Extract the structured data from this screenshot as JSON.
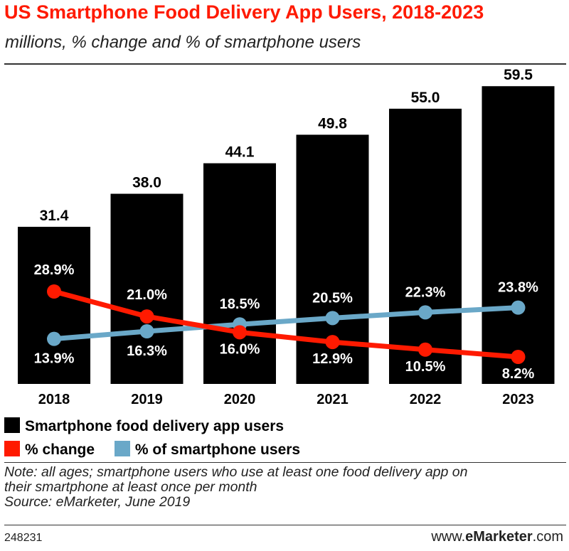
{
  "header": {
    "title": "US Smartphone Food Delivery App Users, 2018-2023",
    "subtitle": "millions, % change and % of smartphone users"
  },
  "chart_data": {
    "type": "bar",
    "categories": [
      "2018",
      "2019",
      "2020",
      "2021",
      "2022",
      "2023"
    ],
    "bar_series": {
      "name": "Smartphone food delivery app users",
      "values": [
        31.4,
        38.0,
        44.1,
        49.8,
        55.0,
        59.5
      ],
      "labels": [
        "31.4",
        "38.0",
        "44.1",
        "49.8",
        "55.0",
        "59.5"
      ],
      "color": "#000000"
    },
    "line_series": [
      {
        "name": "% change",
        "values": [
          28.9,
          21.0,
          16.0,
          12.9,
          10.5,
          8.2
        ],
        "labels": [
          "28.9%",
          "21.0%",
          "16.0%",
          "12.9%",
          "10.5%",
          "8.2%"
        ],
        "color": "#ff1a00"
      },
      {
        "name": "% of smartphone users",
        "values": [
          13.9,
          16.3,
          18.5,
          20.5,
          22.3,
          23.8
        ],
        "labels": [
          "13.9%",
          "16.3%",
          "18.5%",
          "20.5%",
          "22.3%",
          "23.8%"
        ],
        "color": "#6aa8c8"
      }
    ],
    "bar_ylim": [
      0,
      65
    ],
    "line_ylim": [
      0,
      40
    ]
  },
  "legend": {
    "bars": "Smartphone food delivery app users",
    "change": "% change",
    "share": "% of smartphone users"
  },
  "note": {
    "line1": "Note: all ages; smartphone users who use at least one food delivery app on",
    "line2": "their smartphone at least once per month",
    "source": "Source: eMarketer, June 2019"
  },
  "footer": {
    "id": "248231",
    "brand_prefix": "www.",
    "brand_bold": "eMarketer",
    "brand_suffix": ".com"
  }
}
